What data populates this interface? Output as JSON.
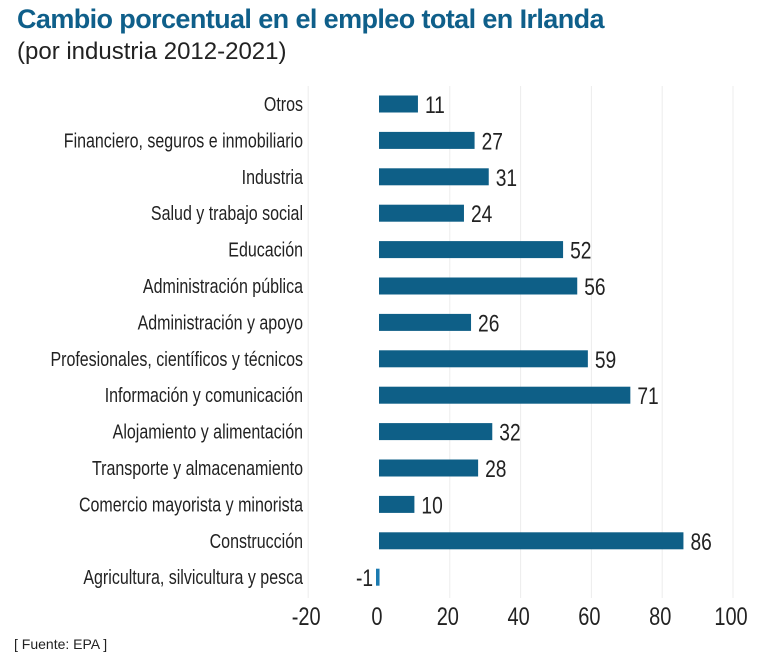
{
  "title": "Cambio porcentual en el empleo total en Irlanda",
  "subtitle": "(por industria 2012-2021)",
  "source": "[ Fuente: EPA ]",
  "chart_data": {
    "type": "bar",
    "orientation": "horizontal",
    "categories": [
      "Otros",
      "Financiero, seguros e inmobiliario",
      "Industria",
      "Salud y trabajo social",
      "Educación",
      "Administración pública",
      "Administración y apoyo",
      "Profesionales, científicos y técnicos",
      "Información y comunicación",
      "Alojamiento y alimentación",
      "Transporte y almacenamiento",
      "Comercio mayorista y minorista",
      "Construcción",
      "Agricultura, silvicultura y pesca"
    ],
    "values": [
      11,
      27,
      31,
      24,
      52,
      56,
      26,
      59,
      71,
      32,
      28,
      10,
      86,
      -1
    ],
    "xlim": [
      -20,
      100
    ],
    "xticks": [
      -20,
      0,
      20,
      40,
      60,
      80,
      100
    ],
    "grid": "vertical",
    "data_labels": true,
    "bar_color": "#0e5f87",
    "negative_bar_color": "#1a7ab0"
  }
}
